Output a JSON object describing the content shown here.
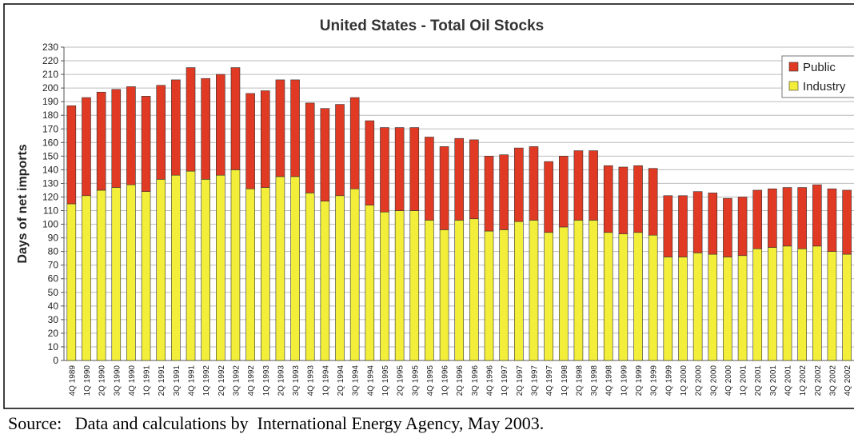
{
  "chart_data": {
    "type": "bar",
    "stacked": true,
    "title": "United States - Total Oil Stocks",
    "y_label": "Days of net imports",
    "source": "Source:   Data and calculations by  International Energy Agency, May 2003.",
    "categories": [
      "4Q 1989",
      "1Q 1990",
      "2Q 1990",
      "3Q 1990",
      "4Q 1990",
      "1Q 1991",
      "2Q 1991",
      "3Q 1991",
      "4Q 1991",
      "1Q 1992",
      "2Q 1992",
      "3Q 1992",
      "4Q 1992",
      "1Q 1993",
      "2Q 1993",
      "3Q 1993",
      "4Q 1993",
      "1Q 1994",
      "2Q 1994",
      "3Q 1994",
      "4Q 1994",
      "1Q 1995",
      "2Q 1995",
      "3Q 1995",
      "4Q 1995",
      "1Q 1996",
      "2Q 1996",
      "3Q 1996",
      "4Q 1996",
      "1Q 1997",
      "2Q 1997",
      "3Q 1997",
      "4Q 1997",
      "1Q 1998",
      "2Q 1998",
      "3Q 1998",
      "4Q 1998",
      "1Q 1999",
      "2Q 1999",
      "3Q 1999",
      "4Q 1999",
      "1Q 2000",
      "2Q 2000",
      "3Q 2000",
      "4Q 2000",
      "1Q 2001",
      "2Q 2001",
      "3Q 2001",
      "4Q 2001",
      "1Q 2002",
      "2Q 2002",
      "3Q 2002",
      "4Q 2002"
    ],
    "series": [
      {
        "name": "Industry",
        "color": "#f2ee3a",
        "values": [
          115,
          121,
          125,
          127,
          129,
          124,
          133,
          136,
          139,
          133,
          136,
          140,
          126,
          127,
          135,
          135,
          123,
          117,
          121,
          126,
          114,
          109,
          110,
          110,
          103,
          96,
          103,
          104,
          95,
          96,
          102,
          103,
          94,
          98,
          103,
          103,
          94,
          93,
          94,
          92,
          76,
          76,
          79,
          78,
          76,
          77,
          82,
          83,
          84,
          82,
          84,
          80,
          78
        ]
      },
      {
        "name": "Public",
        "color": "#e03a24",
        "values": [
          72,
          72,
          72,
          72,
          72,
          70,
          69,
          70,
          76,
          74,
          74,
          75,
          70,
          71,
          71,
          71,
          66,
          68,
          67,
          67,
          62,
          62,
          61,
          61,
          61,
          61,
          60,
          58,
          55,
          55,
          54,
          54,
          52,
          52,
          51,
          51,
          49,
          49,
          49,
          49,
          45,
          45,
          45,
          45,
          43,
          43,
          43,
          43,
          43,
          45,
          45,
          46,
          47
        ]
      }
    ],
    "ylim": [
      0,
      230
    ],
    "yticks": [
      0,
      10,
      20,
      30,
      40,
      50,
      60,
      70,
      80,
      90,
      100,
      110,
      120,
      130,
      140,
      150,
      160,
      170,
      180,
      190,
      200,
      210,
      220,
      230
    ],
    "grid": true,
    "legend": "top-right"
  }
}
